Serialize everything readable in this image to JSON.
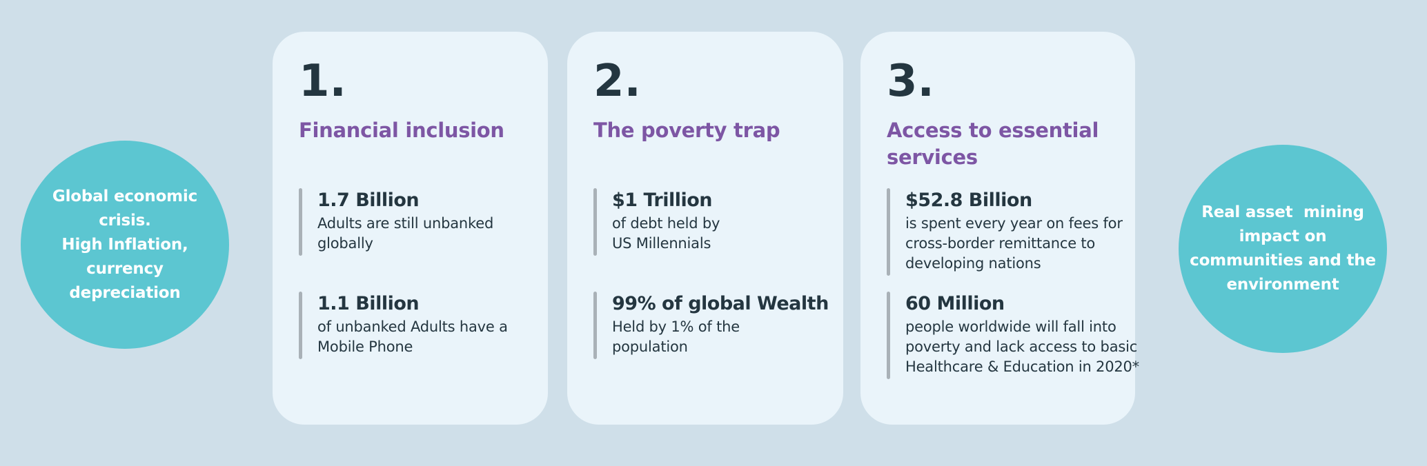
{
  "bubbles": {
    "left": {
      "text": "Global economic\ncrisis.\nHigh Inflation,\ncurrency\ndepreciation"
    },
    "right": {
      "text": "Real asset  mining\nimpact on\ncommunities and the\nenvironment"
    }
  },
  "cards": [
    {
      "number": "1.",
      "title": "Financial inclusion",
      "stats": [
        {
          "value": "1.7 Billion",
          "description": "Adults are still unbanked\nglobally"
        },
        {
          "value": "1.1 Billion",
          "description": "of unbanked Adults have a\nMobile Phone"
        }
      ]
    },
    {
      "number": "2.",
      "title": "The poverty trap",
      "stats": [
        {
          "value": "$1 Trillion",
          "description": "of debt held by\nUS Millennials"
        },
        {
          "value": "99% of global Wealth",
          "description": "Held by 1% of the\npopulation"
        }
      ]
    },
    {
      "number": "3.",
      "title": "Access to essential\nservices",
      "stats": [
        {
          "value": "$52.8 Billion",
          "description": "is spent every year on fees for\ncross-border remittance to\ndeveloping nations"
        },
        {
          "value": "60 Million",
          "description": "people worldwide will fall into\npoverty and lack access to basic\nHealthcare & Education in 2020*"
        }
      ]
    }
  ],
  "colors": {
    "background": "#cfdfe9",
    "card_background": "#eaf4fa",
    "bubble_teal": "#5cc6d1",
    "heading_purple": "#7d56a4",
    "text_dark": "#243640",
    "stat_bar_gray": "#a9b1b7",
    "bubble_text": "#ffffff"
  }
}
